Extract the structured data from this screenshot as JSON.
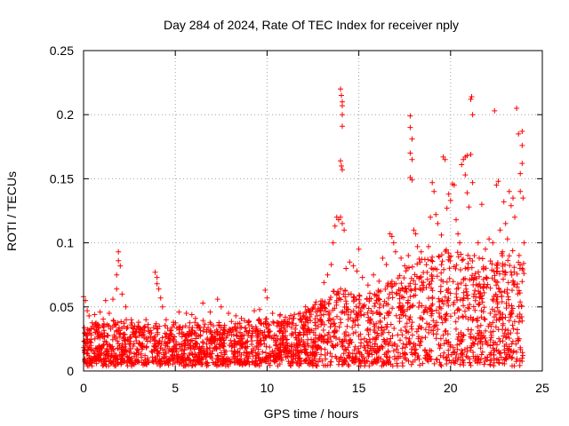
{
  "chart_data": {
    "type": "scatter",
    "title": "Day 284 of 2024, Rate Of TEC Index for receiver nply",
    "xlabel": "GPS time / hours",
    "ylabel": "ROTI / TECUs",
    "xlim": [
      0,
      25
    ],
    "ylim": [
      0,
      0.25
    ],
    "x_ticks": [
      0,
      5,
      10,
      15,
      20,
      25
    ],
    "y_ticks": [
      0,
      0.05,
      0.1,
      0.15,
      0.2,
      0.25
    ],
    "x_tick_labels": [
      "0",
      "5",
      "10",
      "15",
      "20",
      "25"
    ],
    "y_tick_labels": [
      "0",
      "0.05",
      "0.1",
      "0.15",
      "0.2",
      "0.25"
    ],
    "grid": true,
    "marker": "+",
    "color": "#ff0000",
    "series": [
      {
        "name": "ROTI",
        "points": [
          [
            0.0,
            0.058
          ],
          [
            0.1,
            0.055
          ],
          [
            0.2,
            0.047
          ],
          [
            0.3,
            0.043
          ],
          [
            0.6,
            0.044
          ],
          [
            0.9,
            0.046
          ],
          [
            1.2,
            0.055
          ],
          [
            1.4,
            0.045
          ],
          [
            1.6,
            0.056
          ],
          [
            1.8,
            0.075
          ],
          [
            1.8,
            0.064
          ],
          [
            1.9,
            0.093
          ],
          [
            1.9,
            0.086
          ],
          [
            2.0,
            0.082
          ],
          [
            2.1,
            0.06
          ],
          [
            2.3,
            0.05
          ],
          [
            2.6,
            0.04
          ],
          [
            3.0,
            0.038
          ],
          [
            3.4,
            0.04
          ],
          [
            3.9,
            0.077
          ],
          [
            4.0,
            0.073
          ],
          [
            4.0,
            0.068
          ],
          [
            4.1,
            0.064
          ],
          [
            4.2,
            0.057
          ],
          [
            4.3,
            0.05
          ],
          [
            4.5,
            0.04
          ],
          [
            4.9,
            0.038
          ],
          [
            5.2,
            0.046
          ],
          [
            5.6,
            0.045
          ],
          [
            5.9,
            0.044
          ],
          [
            6.1,
            0.041
          ],
          [
            6.5,
            0.053
          ],
          [
            6.9,
            0.046
          ],
          [
            7.3,
            0.056
          ],
          [
            7.5,
            0.05
          ],
          [
            7.9,
            0.045
          ],
          [
            8.3,
            0.043
          ],
          [
            8.6,
            0.041
          ],
          [
            9.0,
            0.039
          ],
          [
            9.3,
            0.047
          ],
          [
            9.6,
            0.048
          ],
          [
            9.9,
            0.063
          ],
          [
            10.0,
            0.057
          ],
          [
            10.3,
            0.045
          ],
          [
            10.7,
            0.043
          ],
          [
            11.0,
            0.042
          ],
          [
            11.4,
            0.041
          ],
          [
            11.8,
            0.045
          ],
          [
            12.1,
            0.05
          ],
          [
            12.5,
            0.049
          ],
          [
            12.9,
            0.052
          ],
          [
            13.1,
            0.069
          ],
          [
            13.3,
            0.075
          ],
          [
            13.5,
            0.083
          ],
          [
            13.6,
            0.1
          ],
          [
            13.7,
            0.113
          ],
          [
            13.8,
            0.12
          ],
          [
            13.9,
            0.118
          ],
          [
            14.0,
            0.22
          ],
          [
            14.05,
            0.215
          ],
          [
            14.1,
            0.21
          ],
          [
            14.1,
            0.207
          ],
          [
            14.1,
            0.2
          ],
          [
            14.1,
            0.191
          ],
          [
            14.0,
            0.164
          ],
          [
            14.05,
            0.16
          ],
          [
            14.1,
            0.157
          ],
          [
            14.0,
            0.12
          ],
          [
            14.1,
            0.115
          ],
          [
            14.2,
            0.11
          ],
          [
            14.3,
            0.08
          ],
          [
            14.5,
            0.085
          ],
          [
            14.7,
            0.082
          ],
          [
            14.9,
            0.078
          ],
          [
            15.0,
            0.095
          ],
          [
            15.2,
            0.073
          ],
          [
            15.5,
            0.067
          ],
          [
            15.8,
            0.075
          ],
          [
            16.1,
            0.07
          ],
          [
            16.3,
            0.088
          ],
          [
            16.5,
            0.083
          ],
          [
            16.7,
            0.107
          ],
          [
            16.8,
            0.105
          ],
          [
            16.9,
            0.1
          ],
          [
            17.0,
            0.093
          ],
          [
            17.3,
            0.088
          ],
          [
            17.5,
            0.082
          ],
          [
            17.7,
            0.09
          ],
          [
            17.8,
            0.199
          ],
          [
            17.8,
            0.19
          ],
          [
            17.9,
            0.181
          ],
          [
            17.8,
            0.17
          ],
          [
            17.9,
            0.165
          ],
          [
            17.8,
            0.151
          ],
          [
            17.9,
            0.149
          ],
          [
            18.0,
            0.11
          ],
          [
            18.1,
            0.107
          ],
          [
            18.2,
            0.097
          ],
          [
            18.4,
            0.093
          ],
          [
            18.6,
            0.087
          ],
          [
            18.8,
            0.097
          ],
          [
            18.9,
            0.12
          ],
          [
            19.0,
            0.147
          ],
          [
            19.1,
            0.14
          ],
          [
            19.2,
            0.122
          ],
          [
            19.3,
            0.115
          ],
          [
            19.5,
            0.106
          ],
          [
            19.6,
            0.167
          ],
          [
            19.7,
            0.165
          ],
          [
            19.8,
            0.127
          ],
          [
            19.9,
            0.138
          ],
          [
            20.0,
            0.133
          ],
          [
            20.1,
            0.146
          ],
          [
            20.2,
            0.145
          ],
          [
            20.3,
            0.118
          ],
          [
            20.4,
            0.107
          ],
          [
            20.5,
            0.1
          ],
          [
            20.6,
            0.161
          ],
          [
            20.7,
            0.165
          ],
          [
            20.8,
            0.167
          ],
          [
            20.9,
            0.168
          ],
          [
            20.8,
            0.153
          ],
          [
            20.9,
            0.139
          ],
          [
            21.0,
            0.128
          ],
          [
            21.1,
            0.212
          ],
          [
            21.15,
            0.214
          ],
          [
            21.2,
            0.2
          ],
          [
            21.1,
            0.169
          ],
          [
            21.2,
            0.147
          ],
          [
            21.3,
            0.09
          ],
          [
            21.5,
            0.1
          ],
          [
            21.7,
            0.13
          ],
          [
            21.9,
            0.095
          ],
          [
            22.1,
            0.103
          ],
          [
            22.3,
            0.1
          ],
          [
            22.4,
            0.203
          ],
          [
            22.5,
            0.145
          ],
          [
            22.6,
            0.148
          ],
          [
            22.7,
            0.11
          ],
          [
            22.9,
            0.132
          ],
          [
            23.0,
            0.115
          ],
          [
            23.1,
            0.103
          ],
          [
            23.2,
            0.14
          ],
          [
            23.3,
            0.129
          ],
          [
            23.4,
            0.135
          ],
          [
            23.5,
            0.12
          ],
          [
            23.6,
            0.205
          ],
          [
            23.7,
            0.185
          ],
          [
            23.8,
            0.154
          ],
          [
            23.8,
            0.14
          ],
          [
            23.9,
            0.187
          ],
          [
            23.9,
            0.176
          ],
          [
            23.9,
            0.162
          ],
          [
            23.95,
            0.135
          ],
          [
            24.0,
            0.1
          ],
          [
            23.9,
            0.08
          ]
        ]
      }
    ],
    "dense_band": {
      "description": "dense cloud of points covering the full time range",
      "x_range": [
        0,
        24
      ],
      "baseline_min": 0.005,
      "upper_envelope": [
        [
          0,
          0.035
        ],
        [
          2,
          0.04
        ],
        [
          4,
          0.035
        ],
        [
          6,
          0.037
        ],
        [
          8,
          0.036
        ],
        [
          10,
          0.04
        ],
        [
          12,
          0.045
        ],
        [
          13,
          0.055
        ],
        [
          14,
          0.065
        ],
        [
          15,
          0.06
        ],
        [
          16,
          0.065
        ],
        [
          17,
          0.075
        ],
        [
          18,
          0.085
        ],
        [
          19,
          0.09
        ],
        [
          20,
          0.095
        ],
        [
          21,
          0.09
        ],
        [
          22,
          0.085
        ],
        [
          23,
          0.095
        ],
        [
          24,
          0.09
        ]
      ]
    }
  }
}
